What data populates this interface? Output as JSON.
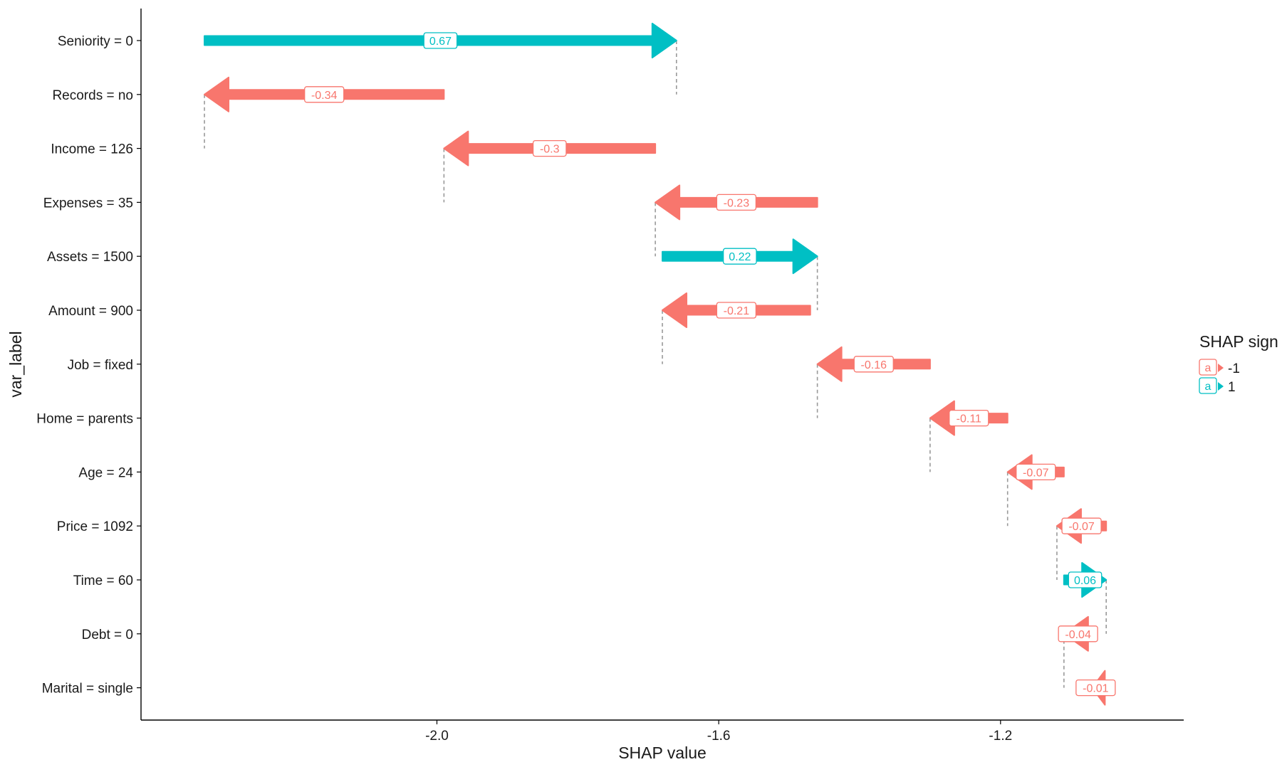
{
  "chart_data": {
    "type": "waterfall",
    "xlabel": "SHAP value",
    "ylabel": "var_label",
    "xlim": [
      -2.42,
      -0.94
    ],
    "x_ticks": [
      -2.0,
      -1.6,
      -1.2
    ],
    "x_tick_labels": [
      "-2.0",
      "-1.6",
      "-1.2"
    ],
    "grid": false,
    "legend": {
      "title": "SHAP sign",
      "placement": "right",
      "entries": [
        {
          "label": "-1",
          "color": "#F8766D",
          "key_glyph": "a"
        },
        {
          "label": "1",
          "color": "#00BFC4",
          "key_glyph": "a"
        }
      ]
    },
    "bars": [
      {
        "label": "Seniority = 0",
        "start": -2.33,
        "end": -1.66,
        "shap": 0.67,
        "value_label": "0.67",
        "sign": 1
      },
      {
        "label": "Records = no",
        "start": -1.99,
        "end": -2.33,
        "shap": -0.34,
        "value_label": "-0.34",
        "sign": -1
      },
      {
        "label": "Income = 126",
        "start": -1.69,
        "end": -1.99,
        "shap": -0.3,
        "value_label": "-0.3",
        "sign": -1
      },
      {
        "label": "Expenses = 35",
        "start": -1.46,
        "end": -1.69,
        "shap": -0.23,
        "value_label": "-0.23",
        "sign": -1
      },
      {
        "label": "Assets = 1500",
        "start": -1.68,
        "end": -1.46,
        "shap": 0.22,
        "value_label": "0.22",
        "sign": 1
      },
      {
        "label": "Amount = 900",
        "start": -1.47,
        "end": -1.68,
        "shap": -0.21,
        "value_label": "-0.21",
        "sign": -1
      },
      {
        "label": "Job = fixed",
        "start": -1.3,
        "end": -1.46,
        "shap": -0.16,
        "value_label": "-0.16",
        "sign": -1
      },
      {
        "label": "Home = parents",
        "start": -1.19,
        "end": -1.3,
        "shap": -0.11,
        "value_label": "-0.11",
        "sign": -1
      },
      {
        "label": "Age = 24",
        "start": -1.11,
        "end": -1.19,
        "shap": -0.07,
        "value_label": "-0.07",
        "sign": -1
      },
      {
        "label": "Price = 1092",
        "start": -1.05,
        "end": -1.12,
        "shap": -0.07,
        "value_label": "-0.07",
        "sign": -1
      },
      {
        "label": "Time = 60",
        "start": -1.11,
        "end": -1.05,
        "shap": 0.06,
        "value_label": "0.06",
        "sign": 1
      },
      {
        "label": "Debt = 0",
        "start": -1.07,
        "end": -1.11,
        "shap": -0.04,
        "value_label": "-0.04",
        "sign": -1
      },
      {
        "label": "Marital = single",
        "start": -1.06,
        "end": -1.07,
        "shap": -0.01,
        "value_label": "-0.01",
        "sign": -1
      }
    ]
  },
  "colors": {
    "negative": "#F8766D",
    "positive": "#00BFC4",
    "connector": "#999999",
    "axis": "#000000"
  }
}
